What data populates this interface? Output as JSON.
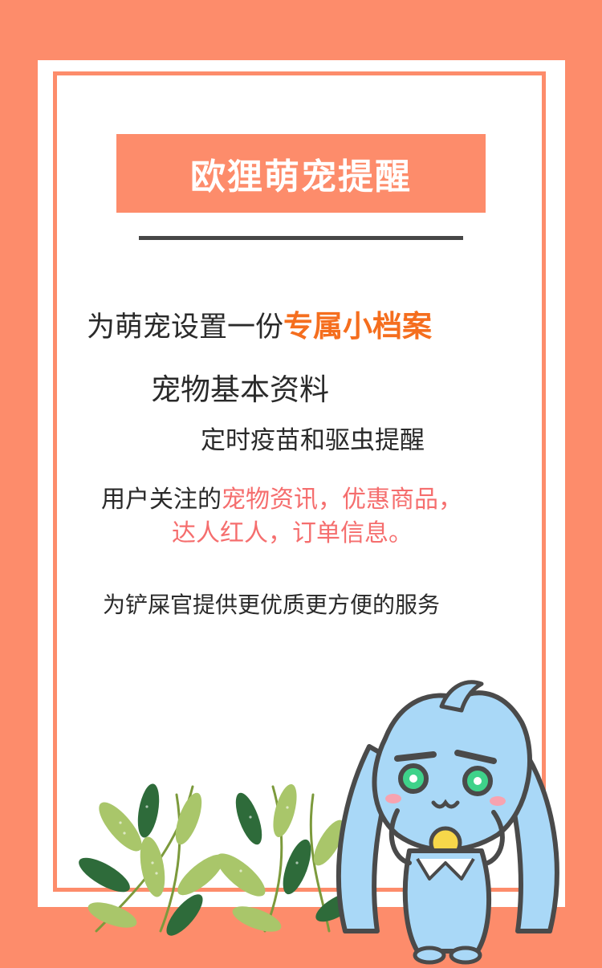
{
  "title": "欧狸萌宠提醒",
  "lines": {
    "line1_plain": "为萌宠设置一份",
    "line1_highlight": "专属小档案",
    "line2": "宠物基本资料",
    "line3": "定时疫苗和驱虫提醒",
    "line4_plain": "用户关注的",
    "line4_highlight": "宠物资讯，优惠商品，",
    "line5": "达人红人，订单信息。",
    "line6": "为铲屎官提供更优质更方便的服务"
  },
  "colors": {
    "background": "#fd8c6b",
    "card": "#ffffff",
    "title_box": "#fd8c6b",
    "highlight_orange": "#f56e1e",
    "highlight_pink": "#f56e6e",
    "divider": "#474747"
  },
  "illustrations": {
    "leaves": "olive-branch-decoration",
    "mascot": "blue-fox-mascot"
  }
}
